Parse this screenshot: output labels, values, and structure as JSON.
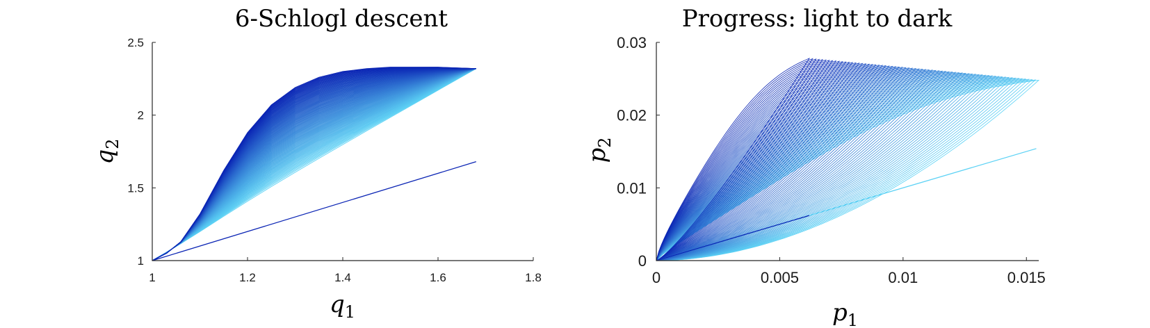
{
  "chart_data": [
    {
      "type": "line",
      "title": "6-Schlogl descent",
      "xlabel": {
        "base": "q",
        "sub": "1"
      },
      "ylabel": {
        "base": "q",
        "sub": "2"
      },
      "xlim": [
        1,
        1.8
      ],
      "ylim": [
        1,
        2.5
      ],
      "xticks": [
        1,
        1.2,
        1.4,
        1.6,
        1.8
      ],
      "xtick_labels": [
        "1",
        "1.2",
        "1.4",
        "1.6",
        "1.8"
      ],
      "yticks": [
        1,
        1.5,
        2,
        2.5
      ],
      "ytick_labels": [
        "1",
        "1.5",
        "2",
        "2.5"
      ],
      "grid": false,
      "colors": {
        "light": "#5cd2f5",
        "dark": "#0a24b4"
      },
      "n_curves": 120,
      "series": [
        {
          "description": "family of descent curves from (1,1) to (1.68,2.32), progressing light to dark",
          "start": [
            1,
            1
          ],
          "end": [
            1.68,
            2.32
          ],
          "outermost_curve": {
            "x": [
              1,
              1.03,
              1.06,
              1.1,
              1.15,
              1.2,
              1.25,
              1.3,
              1.35,
              1.4,
              1.45,
              1.5,
              1.55,
              1.6,
              1.68
            ],
            "y": [
              1,
              1.05,
              1.13,
              1.32,
              1.62,
              1.88,
              2.07,
              2.19,
              2.26,
              2.3,
              2.32,
              2.33,
              2.33,
              2.33,
              2.32
            ]
          }
        },
        {
          "description": "straight line",
          "x": [
            1,
            1.68
          ],
          "y": [
            1,
            1.68
          ]
        }
      ]
    },
    {
      "type": "line",
      "title": "Progress: light to dark",
      "xlabel": {
        "base": "p",
        "sub": "1"
      },
      "ylabel": {
        "base": "p",
        "sub": "2"
      },
      "xlim": [
        0,
        0.0155
      ],
      "ylim": [
        0,
        0.03
      ],
      "xticks": [
        0,
        0.005,
        0.01,
        0.015
      ],
      "xtick_labels": [
        "0",
        "0.005",
        "0.01",
        "0.015"
      ],
      "yticks": [
        0,
        0.01,
        0.02,
        0.03
      ],
      "ytick_labels": [
        "0",
        "0.01",
        "0.02",
        "0.03"
      ],
      "grid": false,
      "colors": {
        "light": "#5cd2f5",
        "dark": "#0a24b4"
      },
      "n_curves": 70,
      "series": [
        {
          "description": "family of closed loops from origin; light outer loops reach p1≈0.0155, dark inner loops reach p1≈0.0062",
          "first_loop_tip": [
            0.0155,
            0.0248
          ],
          "last_loop_tip": [
            0.0062,
            0.0278
          ]
        },
        {
          "description": "straight light line",
          "x": [
            0,
            0.0154
          ],
          "y": [
            0,
            0.0154
          ]
        },
        {
          "description": "straight dark line",
          "x": [
            0,
            0.0062
          ],
          "y": [
            0,
            0.0062
          ]
        }
      ]
    }
  ]
}
